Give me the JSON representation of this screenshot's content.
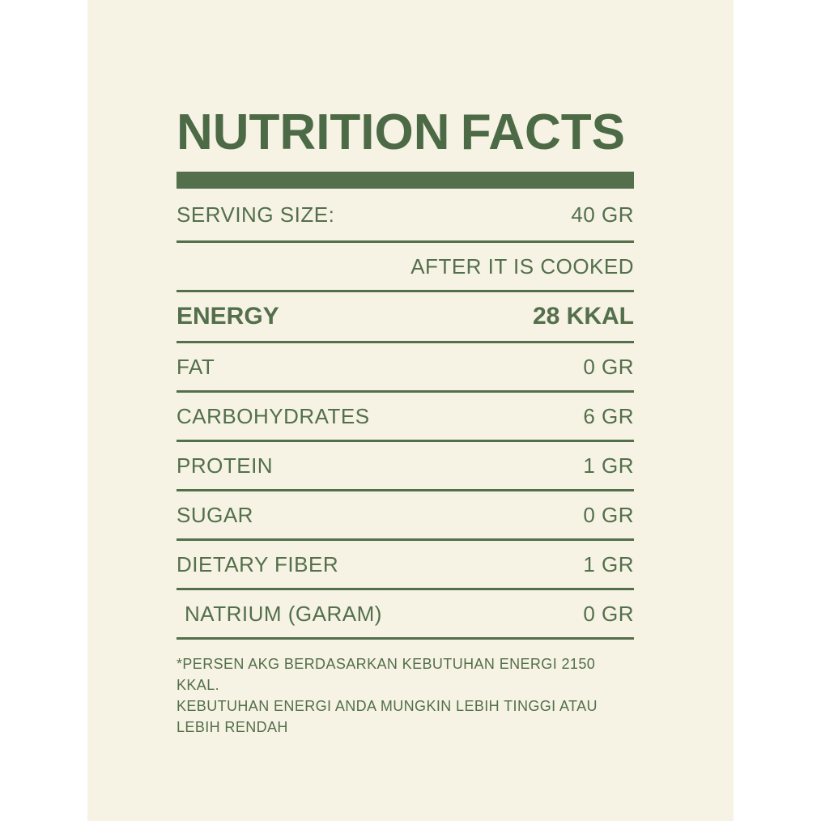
{
  "page": {
    "colors": {
      "bg_white": "#ffffff",
      "panel_cream": "#f6f3e4",
      "green": "#536f4b",
      "green_dark": "#4c6a45"
    }
  },
  "label": {
    "title": "NUTRITION FACTS",
    "table": {
      "rows": [
        {
          "label": "SERVING SIZE:",
          "value": "40 GR"
        },
        {
          "label": "",
          "value": "AFTER IT IS COOKED"
        },
        {
          "label": "ENERGY",
          "value": "28 KKAL"
        },
        {
          "label": "FAT",
          "value": "0 GR"
        },
        {
          "label": "CARBOHYDRATES",
          "value": "6 GR"
        },
        {
          "label": "PROTEIN",
          "value": "1 GR"
        },
        {
          "label": "SUGAR",
          "value": "0 GR"
        },
        {
          "label": "DIETARY FIBER",
          "value": "1 GR"
        },
        {
          "label": "NATRIUM (GARAM)",
          "value": "0 GR"
        }
      ]
    },
    "footnote_lines": [
      "*PERSEN AKG BERDASARKAN KEBUTUHAN ENERGI 2150 KKAL.",
      "KEBUTUHAN ENERGI ANDA MUNGKIN LEBIH TINGGI ATAU",
      "LEBIH RENDAH"
    ]
  }
}
